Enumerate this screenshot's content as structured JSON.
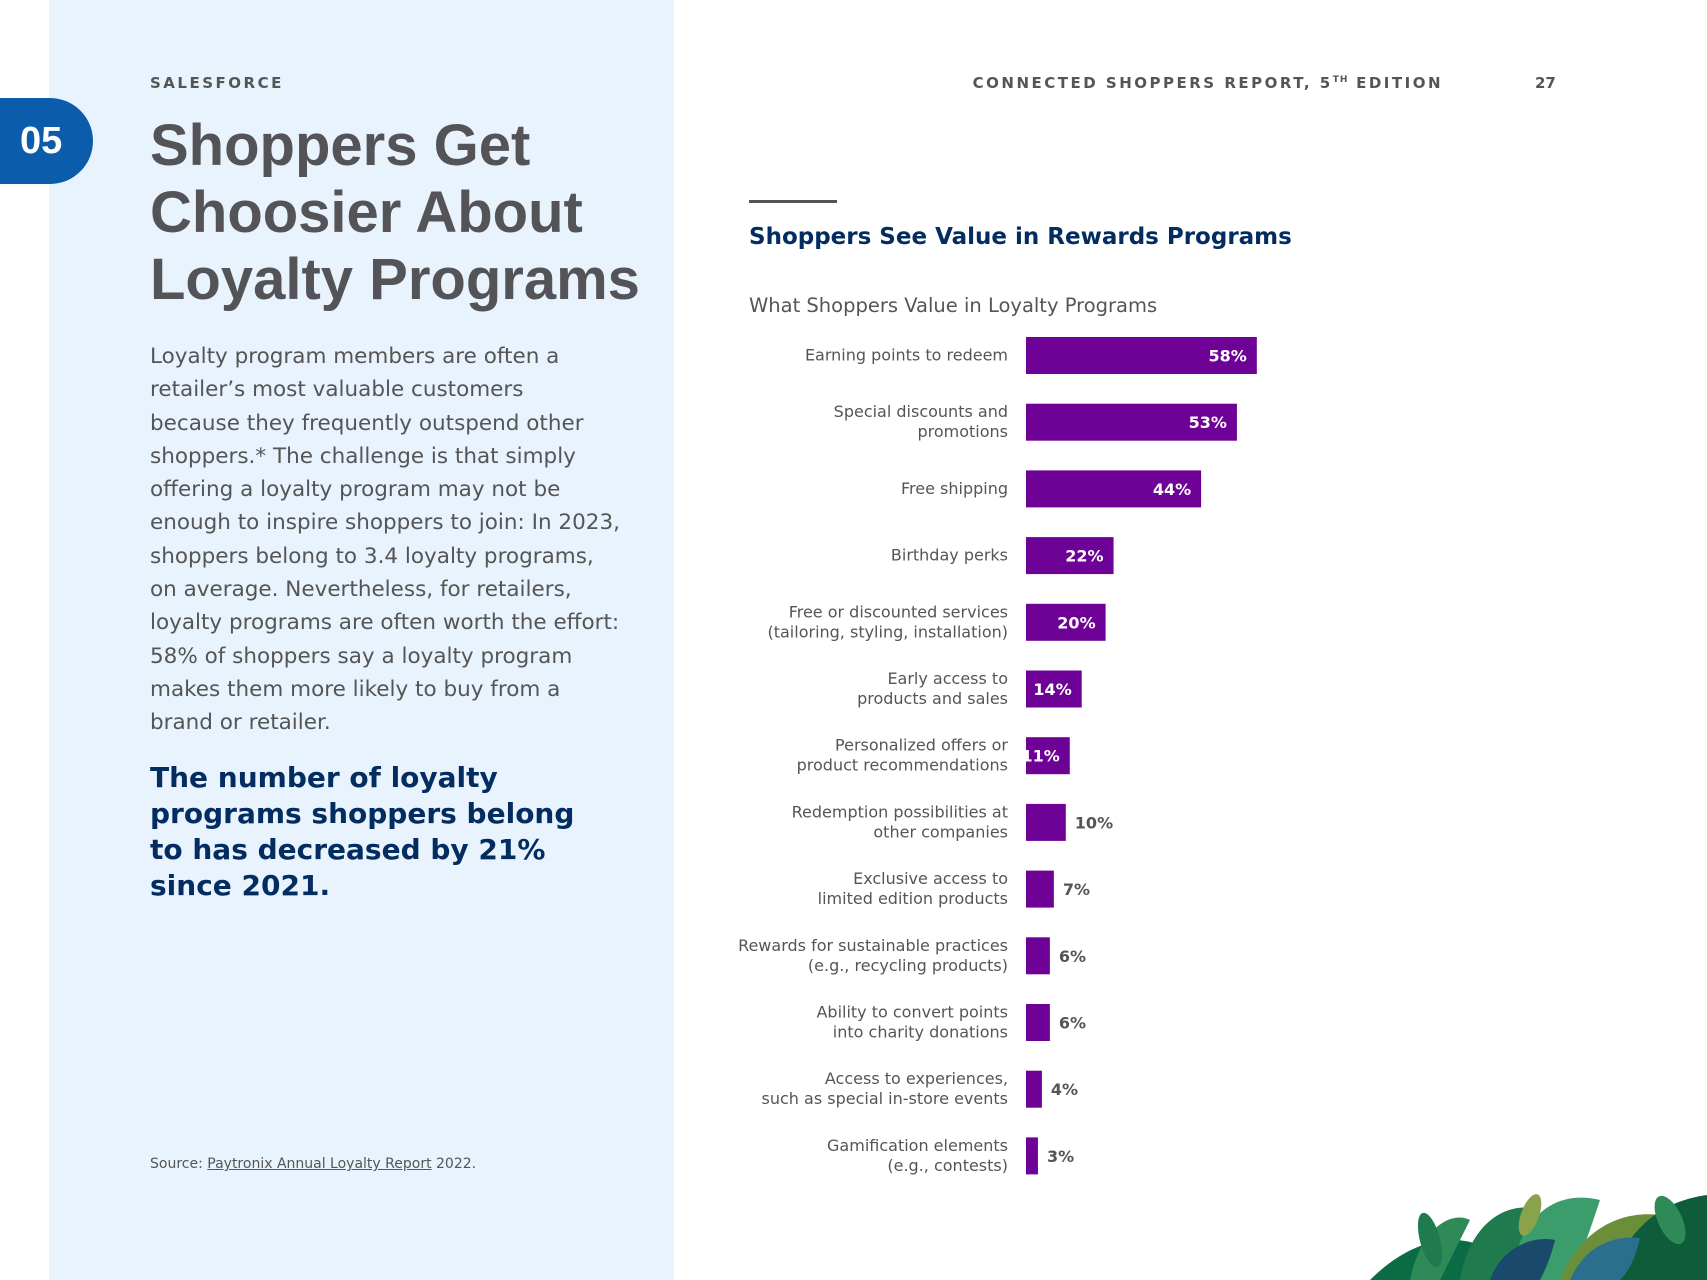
{
  "page": {
    "section_number": "05",
    "brand": "SALESFORCE",
    "report_title": "CONNECTED SHOPPERS REPORT, 5",
    "report_title_sup": "TH",
    "report_title_rest": " EDITION",
    "page_number": "27",
    "headline": "Shoppers Get Choosier About Loyalty Programs",
    "body": "Loyalty program members are often a retailer’s most valuable customers because they frequently outspend other shoppers.* The challenge is that simply offering a loyalty program may not be enough to inspire shoppers to join: In 2023, shoppers belong to 3.4 loyalty programs, on average. Nevertheless, for retailers, loyalty programs are often worth the effort: 58% of shoppers say a loyalty program makes them more likely to buy from a brand or retailer.",
    "callout": "The number of loyalty programs shoppers belong to has decreased by 21% since 2021.",
    "source_prefix": "Source: ",
    "source_link": "Paytronix Annual Loyalty Report",
    "source_suffix": " 2022.",
    "chart_heading": "Shoppers See Value in Rewards Programs"
  },
  "colors": {
    "bar": "#6f0296",
    "left_panel": "#e8f3fd",
    "badge": "#0b5cab",
    "heading": "#032d60"
  },
  "chart_data": {
    "type": "bar",
    "orientation": "horizontal",
    "title": "What Shoppers Value in Loyalty Programs",
    "categories": [
      [
        "Earning points to redeem"
      ],
      [
        "Special discounts and",
        "promotions"
      ],
      [
        "Free shipping"
      ],
      [
        "Birthday perks"
      ],
      [
        "Free or discounted services",
        "(tailoring, styling, installation)"
      ],
      [
        "Early access to",
        "products and sales"
      ],
      [
        "Personalized offers or",
        "product recommendations"
      ],
      [
        "Redemption possibilities at",
        "other companies"
      ],
      [
        "Exclusive access to",
        "limited edition products"
      ],
      [
        "Rewards for sustainable practices",
        "(e.g., recycling products)"
      ],
      [
        "Ability to convert points",
        "into charity donations"
      ],
      [
        "Access to experiences,",
        "such as special in-store events"
      ],
      [
        "Gamification elements",
        "(e.g., contests)"
      ]
    ],
    "values": [
      58,
      53,
      44,
      22,
      20,
      14,
      11,
      10,
      7,
      6,
      6,
      4,
      3
    ],
    "value_suffix": "%",
    "xlim": [
      0,
      100
    ],
    "grid": false,
    "legend": "none"
  }
}
